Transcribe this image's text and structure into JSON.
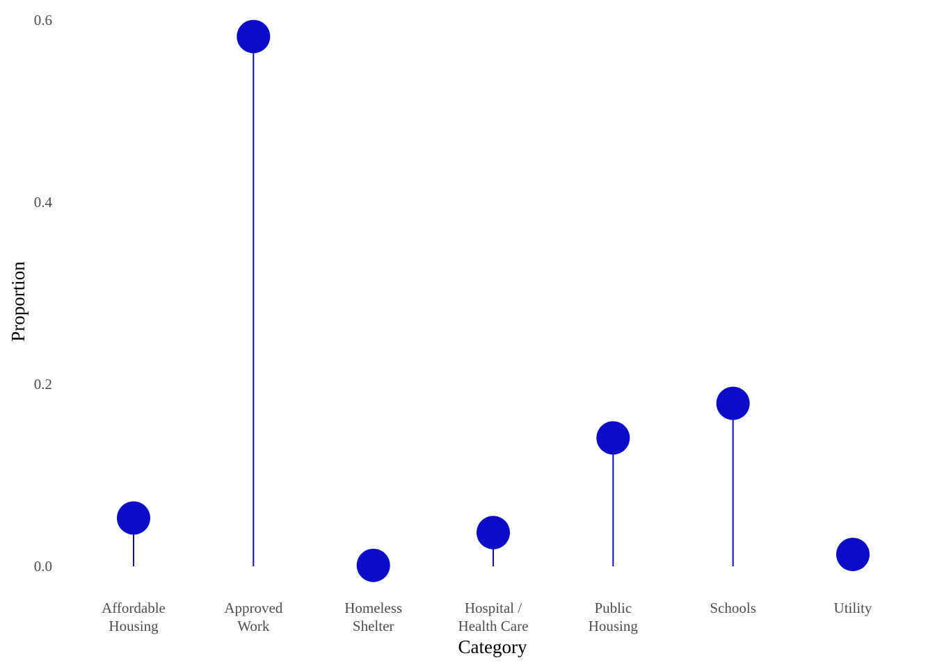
{
  "chart_data": {
    "type": "lollipop",
    "title": "",
    "xlabel": "Category",
    "ylabel": "Proportion",
    "ylim": [
      0,
      0.6
    ],
    "yticks": [
      "0.0",
      "0.2",
      "0.4",
      "0.6"
    ],
    "grid": false,
    "colors": {
      "marker": "#0c0cc8",
      "stem": "#0c0cc8"
    },
    "categories": [
      [
        "Affordable",
        "Housing"
      ],
      [
        "Approved",
        "Work"
      ],
      [
        "Homeless",
        "Shelter"
      ],
      [
        "Hospital /",
        "Health Care"
      ],
      [
        "Public",
        "Housing"
      ],
      [
        "Schools"
      ],
      [
        "Utility"
      ]
    ],
    "values": [
      0.053,
      0.582,
      0.001,
      0.037,
      0.141,
      0.179,
      0.013
    ]
  }
}
